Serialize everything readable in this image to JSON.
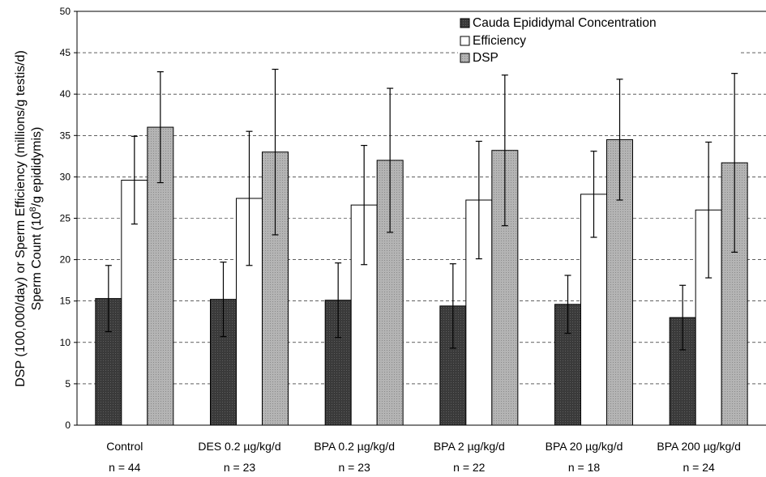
{
  "chart_data": {
    "type": "bar",
    "categories": [
      "Control",
      "DES 0.2 µg/kg/d",
      "BPA 0.2 µg/kg/d",
      "BPA 2 µg/kg/d",
      "BPA 20 µg/kg/d",
      "BPA 200 µg/kg/d"
    ],
    "category_n": [
      "n = 44",
      "n = 23",
      "n = 23",
      "n = 22",
      "n = 18",
      "n = 24"
    ],
    "series": [
      {
        "name": "Cauda Epididymal Concentration",
        "values": [
          15.3,
          15.2,
          15.1,
          14.4,
          14.6,
          13.0
        ],
        "errors": [
          4.0,
          4.5,
          4.5,
          5.1,
          3.5,
          3.9
        ],
        "color": "#3a3a3a"
      },
      {
        "name": "Efficiency",
        "values": [
          29.6,
          27.4,
          26.6,
          27.2,
          27.9,
          26.0
        ],
        "errors": [
          5.3,
          8.1,
          7.2,
          7.1,
          5.2,
          8.2
        ],
        "color": "#ffffff"
      },
      {
        "name": "DSP",
        "values": [
          36.0,
          33.0,
          32.0,
          33.2,
          34.5,
          31.7
        ],
        "errors": [
          6.7,
          10.0,
          8.7,
          9.1,
          7.3,
          10.8
        ],
        "color": "#b4b4b4"
      }
    ],
    "ylabel_line1": "DSP (100,000/day) or Sperm Efficiency (millions/g testis/d)",
    "ylabel_line2_pre": "Sperm Count (10",
    "ylabel_line2_sup": "8",
    "ylabel_line2_post": "/g epididymis)",
    "ylim": [
      0,
      50
    ],
    "yticks": [
      "0",
      "5",
      "10",
      "15",
      "20",
      "25",
      "30",
      "35",
      "40",
      "45",
      "50"
    ],
    "grid": true,
    "legend_position": "top-right"
  }
}
